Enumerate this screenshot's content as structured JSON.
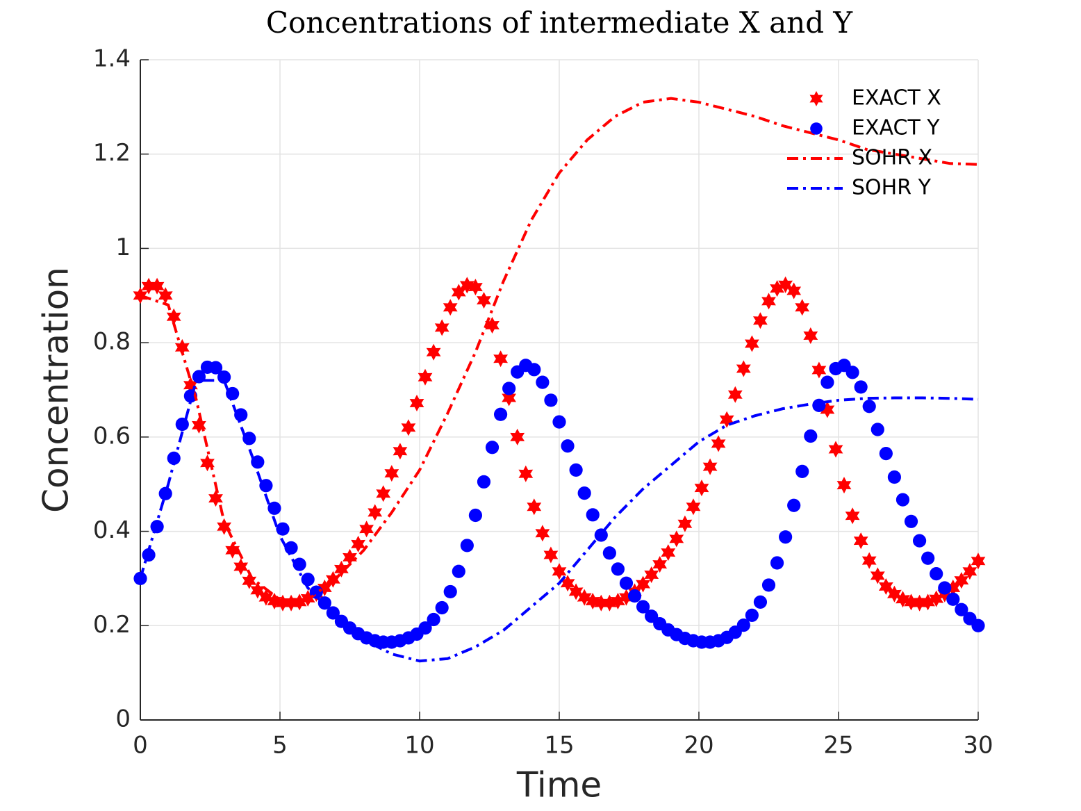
{
  "chart_data": {
    "type": "line",
    "title": "Concentrations of intermediate X and Y",
    "xlabel": "Time",
    "ylabel": "Concentration",
    "xlim": [
      0,
      30
    ],
    "ylim": [
      0,
      1.4
    ],
    "xticks": [
      0,
      5,
      10,
      15,
      20,
      25,
      30
    ],
    "yticks": [
      0,
      0.2,
      0.4,
      0.6,
      0.8,
      1,
      1.2,
      1.4
    ],
    "grid": true,
    "legend": "upper right",
    "x": [
      0,
      0.3,
      0.6,
      0.9,
      1.2,
      1.5,
      1.8,
      2.1,
      2.4,
      2.7,
      3,
      3.3,
      3.6,
      3.9,
      4.2,
      4.5,
      4.8,
      5.1,
      5.4,
      5.7,
      6,
      6.3,
      6.6,
      6.9,
      7.2,
      7.5,
      7.8,
      8.1,
      8.4,
      8.7,
      9,
      9.3,
      9.6,
      9.9,
      10.2,
      10.5,
      10.8,
      11.1,
      11.4,
      11.7,
      12,
      12.3,
      12.6,
      12.9,
      13.2,
      13.5,
      13.8,
      14.1,
      14.4,
      14.7,
      15,
      15.3,
      15.6,
      15.9,
      16.2,
      16.5,
      16.8,
      17.1,
      17.4,
      17.7,
      18,
      18.3,
      18.6,
      18.9,
      19.2,
      19.5,
      19.8,
      20.1,
      20.4,
      20.7,
      21,
      21.3,
      21.6,
      21.9,
      22.2,
      22.5,
      22.8,
      23.1,
      23.4,
      23.7,
      24,
      24.3,
      24.6,
      24.9,
      25.2,
      25.5,
      25.8,
      26.1,
      26.4,
      26.7,
      27,
      27.3,
      27.6,
      27.9,
      28.2,
      28.5,
      28.8,
      29.1,
      29.4,
      29.7,
      30
    ],
    "series": [
      {
        "name": "EXACT X",
        "color": "#ff0000",
        "marker": "hexagram",
        "values": [
          0.9,
          0.92,
          0.92,
          0.9,
          0.855,
          0.79,
          0.71,
          0.625,
          0.545,
          0.47,
          0.41,
          0.36,
          0.325,
          0.295,
          0.275,
          0.26,
          0.252,
          0.248,
          0.248,
          0.25,
          0.258,
          0.268,
          0.28,
          0.298,
          0.32,
          0.345,
          0.373,
          0.405,
          0.44,
          0.48,
          0.523,
          0.57,
          0.62,
          0.672,
          0.727,
          0.78,
          0.832,
          0.875,
          0.907,
          0.922,
          0.918,
          0.89,
          0.837,
          0.766,
          0.683,
          0.6,
          0.522,
          0.452,
          0.396,
          0.35,
          0.315,
          0.29,
          0.272,
          0.26,
          0.252,
          0.248,
          0.248,
          0.252,
          0.26,
          0.272,
          0.288,
          0.308,
          0.33,
          0.355,
          0.384,
          0.416,
          0.452,
          0.492,
          0.537,
          0.586,
          0.637,
          0.69,
          0.745,
          0.798,
          0.847,
          0.888,
          0.915,
          0.923,
          0.91,
          0.875,
          0.815,
          0.742,
          0.658,
          0.574,
          0.498,
          0.433,
          0.38,
          0.338,
          0.306,
          0.283,
          0.267,
          0.256,
          0.25,
          0.248,
          0.25,
          0.257,
          0.267,
          0.28,
          0.296,
          0.315,
          0.337
        ]
      },
      {
        "name": "EXACT Y",
        "color": "#0000ff",
        "marker": "circle",
        "values": [
          0.3,
          0.35,
          0.41,
          0.48,
          0.555,
          0.627,
          0.687,
          0.728,
          0.748,
          0.747,
          0.727,
          0.692,
          0.647,
          0.597,
          0.547,
          0.497,
          0.449,
          0.405,
          0.365,
          0.33,
          0.298,
          0.271,
          0.248,
          0.227,
          0.209,
          0.195,
          0.183,
          0.174,
          0.168,
          0.165,
          0.165,
          0.168,
          0.174,
          0.182,
          0.195,
          0.213,
          0.238,
          0.272,
          0.315,
          0.37,
          0.434,
          0.505,
          0.578,
          0.648,
          0.703,
          0.738,
          0.752,
          0.743,
          0.716,
          0.678,
          0.632,
          0.581,
          0.53,
          0.481,
          0.435,
          0.392,
          0.354,
          0.32,
          0.29,
          0.263,
          0.24,
          0.22,
          0.204,
          0.191,
          0.181,
          0.173,
          0.168,
          0.165,
          0.165,
          0.168,
          0.175,
          0.186,
          0.201,
          0.222,
          0.25,
          0.286,
          0.333,
          0.388,
          0.455,
          0.527,
          0.602,
          0.667,
          0.716,
          0.745,
          0.752,
          0.737,
          0.706,
          0.665,
          0.616,
          0.565,
          0.515,
          0.467,
          0.421,
          0.38,
          0.343,
          0.31,
          0.28,
          0.256,
          0.234,
          0.215,
          0.2
        ]
      },
      {
        "name": "SOHR X",
        "color": "#ff0000",
        "linestyle": "dashdot",
        "x": [
          0,
          1,
          2,
          3,
          4,
          5,
          6,
          7,
          8,
          9,
          10,
          11,
          12,
          13,
          14,
          15,
          16,
          17,
          18,
          19,
          20,
          21,
          22,
          23,
          24,
          25,
          26,
          27,
          28,
          29,
          30
        ],
        "values": [
          0.9,
          0.88,
          0.68,
          0.42,
          0.3,
          0.255,
          0.255,
          0.3,
          0.36,
          0.44,
          0.53,
          0.65,
          0.78,
          0.93,
          1.06,
          1.16,
          1.23,
          1.28,
          1.31,
          1.318,
          1.31,
          1.295,
          1.28,
          1.26,
          1.245,
          1.23,
          1.21,
          1.2,
          1.19,
          1.18,
          1.178
        ]
      },
      {
        "name": "SOHR Y",
        "color": "#0000ff",
        "linestyle": "dashdot",
        "x": [
          0,
          1,
          2,
          3,
          4,
          5,
          6,
          7,
          8,
          9,
          10,
          11,
          12,
          13,
          14,
          15,
          16,
          17,
          18,
          19,
          20,
          21,
          22,
          23,
          24,
          25,
          26,
          27,
          28,
          29,
          30
        ],
        "values": [
          0.3,
          0.5,
          0.72,
          0.72,
          0.56,
          0.39,
          0.28,
          0.22,
          0.17,
          0.14,
          0.125,
          0.13,
          0.155,
          0.19,
          0.24,
          0.29,
          0.36,
          0.43,
          0.49,
          0.54,
          0.59,
          0.625,
          0.645,
          0.66,
          0.67,
          0.678,
          0.682,
          0.683,
          0.683,
          0.682,
          0.68
        ]
      }
    ]
  }
}
